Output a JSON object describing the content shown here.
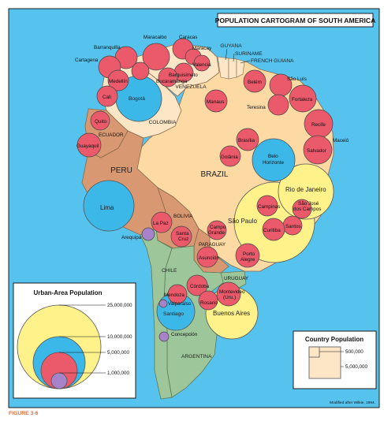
{
  "title": "POPULATION CARTOGRAM OF SOUTH AMERICA",
  "figure_label": "FIGURE 3-6",
  "credit": "Modified after Wilkie, 1994.",
  "colors": {
    "ocean": "#56c3ee",
    "brazil": "#fdd9a3",
    "colombia_venezuela": "#fde6c5",
    "andes": "#d79872",
    "argentina_chile": "#9dc79a",
    "city_small": "#ea5a6a",
    "city_mid": "#3bb7e8",
    "city_large": "#fff28a",
    "city_tiny": "#a783c9"
  },
  "countries": {
    "brazil": "BRAZIL",
    "colombia": "COLOMBIA",
    "venezuela": "VENEZUELA",
    "guyana": "GUYANA",
    "suriname": "SURINAME",
    "french_guiana": "FRENCH GUIANA",
    "ecuador": "ECUADOR",
    "peru": "PERU",
    "bolivia": "BOLIVIA",
    "paraguay": "PARAGUAY",
    "uruguay": "URUGUAY",
    "chile": "CHILE",
    "argentina": "ARGENTINA"
  },
  "cities": {
    "barranquilla": "Barranquilla",
    "cartagena": "Cartagena",
    "maracaibo": "Maracaibo",
    "caracas": "Caracas",
    "maracay": "Maracay",
    "valencia": "Valencia",
    "barquisimeto": "Barquisimeto",
    "bucaramanga": "Bucaramanga",
    "medellin": "Medellín",
    "cali": "Cali",
    "bogota": "Bogotá",
    "quito": "Quito",
    "guayaquil": "Guayaquil",
    "lima": "Lima",
    "arequipa": "Arequipa",
    "la_paz": "La Paz",
    "santa_cruz": "Santa\nCruz",
    "manaus": "Manaus",
    "belem": "Belém",
    "sao_luis": "São Luís",
    "fortaleza": "Fortaleza",
    "teresina": "Teresina",
    "recife": "Recife",
    "maceio": "Maceió",
    "salvador": "Salvador",
    "brasilia": "Brasília",
    "goiania": "Goiânia",
    "belo_horizonte": "Belo\nHorizonte",
    "rio_de_janeiro": "Rio de Janeiro",
    "sao_paulo": "São Paulo",
    "campinas": "Campinas",
    "sao_jose_dos_campos": "São José\ndos Campos",
    "santos": "Santos",
    "curitiba": "Curitiba",
    "campo_grande": "Campo\nGrande",
    "asuncion": "Asunción",
    "porto_alegre": "Porto\nAlegre",
    "cordoba": "Córdoba",
    "rosario": "Rosario",
    "mendoza": "Mendoza",
    "valparaiso": "Valparaiso",
    "santiago": "Santiago",
    "montevideo": "Montevideo\n(Uru.)",
    "buenos_aires": "Buenos Aires",
    "concepcion": "Concepción"
  },
  "urban_legend": {
    "title": "Urban-Area Population",
    "levels": [
      "25,000,000",
      "10,000,000",
      "5,000,000",
      "1,000,000"
    ]
  },
  "country_legend": {
    "title": "Country Population",
    "levels": [
      "500,000",
      "5,000,000"
    ]
  }
}
